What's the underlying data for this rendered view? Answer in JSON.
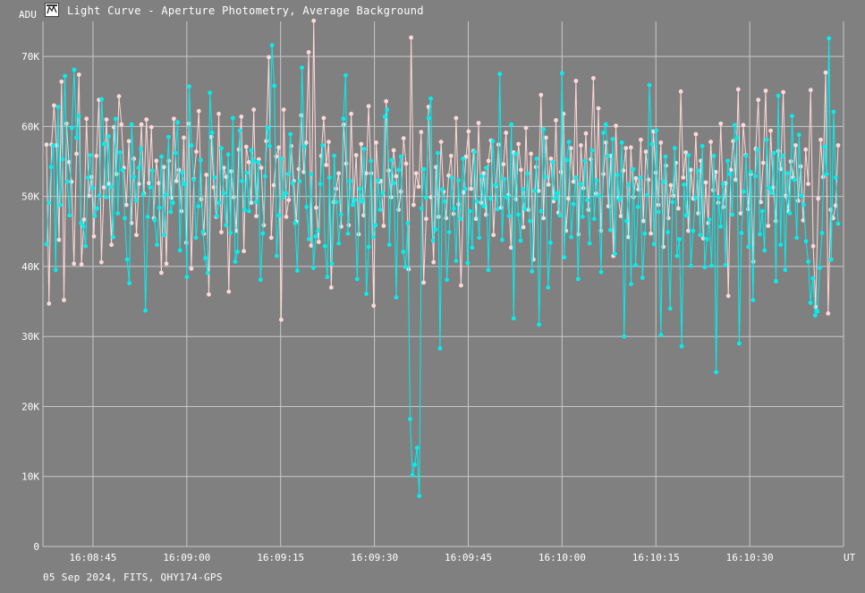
{
  "window": {
    "title": "Light Curve - Aperture Photometry, Average Background",
    "icon": "light-curve-app-icon"
  },
  "footer": {
    "text": "05 Sep 2024, FITS, QHY174-GPS"
  },
  "chart_data": {
    "type": "line",
    "ylabel": "ADU",
    "xlabel": "UT",
    "ylim": [
      0,
      75000
    ],
    "y_ticks": [
      "0",
      "10K",
      "20K",
      "30K",
      "40K",
      "50K",
      "60K",
      "70K"
    ],
    "y_tick_values": [
      0,
      10000,
      20000,
      30000,
      40000,
      50000,
      60000,
      70000
    ],
    "x_ticks": [
      "16:08:45",
      "16:09:00",
      "16:09:15",
      "16:09:30",
      "16:09:45",
      "16:10:00",
      "16:10:15",
      "16:10:30"
    ],
    "x_start": "16:08:37",
    "x_end": "16:10:45",
    "grid": true,
    "colors": {
      "background": "#808080",
      "grid": "#c8c8c8",
      "series_1": "#00f0f0",
      "series_2": "#ffd8d8",
      "text": "#ffffff"
    },
    "series": [
      {
        "color": "#00f0f0",
        "values": [
          43200,
          49100,
          54200,
          57300,
          39500,
          62800,
          48800,
          55300,
          67200,
          52100,
          47300,
          59800,
          68100,
          58400,
          61500,
          46200,
          45700,
          42900,
          52700,
          55900,
          51200,
          47200,
          48300,
          50100,
          63900,
          57500,
          49900,
          58600,
          51400,
          44200,
          61100,
          47600,
          56300,
          53800,
          46900,
          41000,
          37600,
          60300,
          52800,
          49400,
          54100,
          56800,
          50300,
          33700,
          47100,
          51300,
          53700,
          46600,
          43100,
          48400,
          55700,
          44500,
          50200,
          58500,
          47800,
          49100,
          56200,
          60600,
          42300,
          53400,
          51800,
          38500,
          65700,
          57300,
          52400,
          44100,
          48600,
          55200,
          44900,
          41200,
          39100,
          64800,
          59100,
          52700,
          47200,
          49100,
          56900,
          50500,
          45900,
          56000,
          44800,
          61200,
          40700,
          42100,
          59400,
          52200,
          48100,
          53400,
          47900,
          56600,
          55100,
          49200,
          54900,
          38100,
          44700,
          52900,
          59800,
          57200,
          71600,
          65800,
          41500,
          47300,
          55400,
          49900,
          50500,
          53200,
          58900,
          51900,
          46200,
          39400,
          52200,
          68400,
          57100,
          48500,
          43900,
          53200,
          39800,
          44300,
          45100,
          51800,
          57300,
          42900,
          38500,
          52700,
          40400,
          55800,
          49200,
          43300,
          47400,
          61100,
          67300,
          44700,
          52200,
          48800,
          49500,
          38200,
          51100,
          49300,
          56800,
          36100,
          42800,
          55100,
          44200,
          45900,
          52300,
          48100,
          50500,
          61400,
          62400,
          43100,
          55200,
          51900,
          35600,
          53800,
          55700,
          42100,
          39900,
          46200,
          18200,
          10200,
          11700,
          14100,
          7200,
          48300,
          53900,
          49800,
          61200,
          64000,
          43700,
          45300,
          56200,
          28300,
          51000,
          49300,
          38100,
          44900,
          52700,
          48300,
          40800,
          52300,
          46800,
          55400,
          51100,
          40500,
          47900,
          42700,
          56400,
          49300,
          44100,
          52900,
          48600,
          54100,
          39500,
          49700,
          57900,
          51600,
          48200,
          67500,
          43800,
          52500,
          49900,
          47200,
          60300,
          32600,
          56100,
          47400,
          43700,
          51000,
          48200,
          53300,
          46500,
          39300,
          50800,
          55400,
          31700,
          47900,
          59600,
          52800,
          37000,
          43400,
          54900,
          49700,
          50500,
          47300,
          67600,
          41300,
          55200,
          57800,
          44200,
          48900,
          52700,
          38200,
          51800,
          47100,
          55100,
          49500,
          43300,
          56600,
          46800,
          52300,
          50100,
          39200,
          59100,
          60300,
          55800,
          45200,
          58200,
          41800,
          53100,
          49600,
          57700,
          30000,
          46500,
          51700,
          37500,
          53900,
          40200,
          48500,
          52700,
          38400,
          44700,
          50200,
          65900,
          57500,
          43200,
          59400,
          47800,
          30200,
          52100,
          55700,
          44900,
          34000,
          49200,
          56900,
          41500,
          43900,
          28600,
          51700,
          47300,
          55900,
          40100,
          45100,
          49800,
          53700,
          44500,
          57200,
          39900,
          43900,
          46700,
          40100,
          55800,
          24900,
          49900,
          45700,
          51800,
          40200,
          55100,
          53200,
          47400,
          60200,
          58300,
          29000,
          44800,
          50700,
          55800,
          42800,
          53500,
          35200,
          52900,
          56700,
          44600,
          47900,
          42300,
          58100,
          51200,
          50500,
          56200,
          37900,
          64400,
          43100,
          55800,
          39500,
          53300,
          47600,
          61500,
          52400,
          44100,
          58800,
          50100,
          48800,
          43600,
          40700,
          34800,
          38300,
          33000,
          33600,
          39800,
          44800,
          57100,
          53200,
          72600,
          41000,
          62100,
          52700,
          46100
        ]
      },
      {
        "color": "#ffd8d8",
        "values": [
          57400,
          34700,
          57400,
          63000,
          57300,
          43800,
          66400,
          35200,
          60400,
          54900,
          52100,
          40400,
          56100,
          67400,
          40300,
          46700,
          61100,
          50100,
          52800,
          44300,
          55800,
          63800,
          40600,
          51300,
          61000,
          51800,
          43100,
          59900,
          53200,
          64300,
          60300,
          54100,
          48800,
          57900,
          46200,
          55400,
          44500,
          51800,
          60300,
          50400,
          61000,
          51900,
          59900,
          46900,
          55100,
          51900,
          39100,
          54200,
          40400,
          55100,
          49800,
          61100,
          52200,
          53800,
          47900,
          58400,
          43400,
          60400,
          39700,
          52500,
          56400,
          62200,
          49600,
          44700,
          53100,
          36000,
          58500,
          51300,
          47100,
          61800,
          44900,
          54100,
          52800,
          36400,
          53600,
          49900,
          45100,
          56700,
          61400,
          42200,
          57100,
          54900,
          49100,
          62400,
          47200,
          55300,
          54100,
          45900,
          57900,
          69900,
          44100,
          51600,
          55700,
          57000,
          32400,
          62400,
          47100,
          49500,
          57200,
          52200,
          46400,
          53900,
          61600,
          53500,
          57700,
          70600,
          43000,
          75100,
          48400,
          43500,
          55800,
          61200,
          54500,
          57800,
          37000,
          49200,
          51100,
          53300,
          45700,
          60300,
          54700,
          45900,
          61800,
          49400,
          55900,
          44600,
          57500,
          47300,
          53300,
          62900,
          53300,
          34400,
          57700,
          52100,
          52200,
          45800,
          63600,
          53700,
          49900,
          56600,
          52900,
          48100,
          50700,
          58300,
          54700,
          39600,
          72700,
          48800,
          53300,
          51400,
          59200,
          37700,
          46800,
          62800,
          49900,
          40600,
          54200,
          47100,
          57800,
          50700,
          46900,
          53000,
          55800,
          47500,
          61200,
          48900,
          37300,
          50600,
          55700,
          59300,
          51100,
          56500,
          46800,
          60500,
          49100,
          53300,
          47400,
          55100,
          58000,
          44500,
          51500,
          57400,
          48400,
          54600,
          59100,
          50200,
          42700,
          56300,
          49600,
          57500,
          53800,
          45600,
          59800,
          48100,
          56100,
          41000,
          54200,
          50800,
          64500,
          46900,
          58400,
          51700,
          55400,
          49300,
          60900,
          47700,
          53500,
          61800,
          45100,
          49700,
          56900,
          52100,
          66500,
          44600,
          57300,
          51200,
          59000,
          48100,
          55300,
          66900,
          50400,
          62600,
          45100,
          53200,
          57700,
          48600,
          55800,
          41500,
          60100,
          49800,
          47200,
          53700,
          56900,
          44200,
          57000,
          49900,
          52600,
          51000,
          58100,
          46500,
          56400,
          52400,
          44700,
          59300,
          53400,
          48800,
          57700,
          42800,
          54400,
          46900,
          51600,
          50100,
          54800,
          48300,
          65000,
          52700,
          56300,
          45100,
          53800,
          49700,
          58900,
          47600,
          55100,
          44000,
          52000,
          46200,
          57800,
          50900,
          53500,
          49100,
          60400,
          48500,
          51900,
          35800,
          53800,
          57900,
          52400,
          65300,
          47600,
          60200,
          55900,
          48200,
          53200,
          40700,
          56800,
          63800,
          49200,
          54800,
          65100,
          45800,
          59400,
          51300,
          46500,
          56500,
          53900,
          64900,
          50100,
          47900,
          55000,
          52700,
          57300,
          49400,
          54300,
          46600,
          56700,
          51800,
          65200,
          42900,
          34200,
          49700,
          58100,
          52800,
          67700,
          33300,
          48100,
          46900,
          48700,
          57300
        ]
      }
    ]
  }
}
